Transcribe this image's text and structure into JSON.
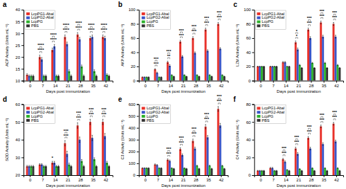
{
  "chart_data": [
    {
      "type": "bar",
      "title": "a",
      "xlabel": "Days post immunization",
      "ylabel": "ACP Activity (Units mL⁻¹)",
      "categories": [
        "0",
        "7",
        "14",
        "21",
        "28",
        "35",
        "42"
      ],
      "series": [
        {
          "name": "LcpPG1-Abal",
          "color": "#e8312a",
          "values": [
            12.5,
            20.0,
            23.0,
            28.5,
            29.5,
            28.0,
            28.5
          ],
          "errors": [
            0.4,
            0.8,
            0.8,
            0.8,
            0.8,
            0.8,
            0.8
          ]
        },
        {
          "name": "LcpPG2-Abal",
          "color": "#3A55C8",
          "values": [
            12.0,
            19.0,
            24.5,
            25.5,
            27.5,
            28.5,
            28.0
          ],
          "errors": [
            0.4,
            0.8,
            0.8,
            0.8,
            0.8,
            0.8,
            0.8
          ]
        },
        {
          "name": "LcpPG",
          "color": "#2db12d",
          "values": [
            12.0,
            12.0,
            12.0,
            14.0,
            16.0,
            14.0,
            12.5
          ],
          "errors": [
            0.4,
            0.4,
            0.4,
            0.6,
            0.6,
            0.6,
            0.4
          ]
        },
        {
          "name": "PBS",
          "color": "#333333",
          "values": [
            12.0,
            12.0,
            12.0,
            12.0,
            12.0,
            12.0,
            12.0
          ],
          "errors": [
            0.4,
            0.4,
            0.4,
            0.4,
            0.4,
            0.4,
            0.4
          ]
        }
      ],
      "ylim": [
        10,
        40
      ],
      "yticks": [
        10,
        15,
        20,
        25,
        30,
        35,
        40
      ],
      "grid": false,
      "legend": "upper left",
      "annotations": [
        {
          "category": "7",
          "labels": [
            "****",
            "****"
          ]
        },
        {
          "category": "14",
          "labels": [
            "****",
            "****"
          ]
        },
        {
          "category": "21",
          "labels": [
            "****",
            "****"
          ]
        },
        {
          "category": "28",
          "labels": [
            "****",
            "****"
          ]
        },
        {
          "category": "35",
          "labels": [
            "****",
            "****"
          ]
        },
        {
          "category": "42",
          "labels": [
            "****",
            "****"
          ]
        }
      ]
    },
    {
      "type": "bar",
      "title": "b",
      "xlabel": "Days post immunization",
      "ylabel": "AKP Activity (Units mL⁻¹)",
      "categories": [
        "0",
        "7",
        "14",
        "21",
        "28",
        "35",
        "42"
      ],
      "series": [
        {
          "name": "LcpPG1-Abal",
          "color": "#e8312a",
          "values": [
            5.0,
            16.0,
            26.0,
            55.0,
            60.0,
            72.0,
            80.0
          ],
          "errors": [
            0.4,
            1.0,
            1.5,
            2.0,
            2.0,
            2.0,
            2.0
          ]
        },
        {
          "name": "LcpPG2-Abal",
          "color": "#3A55C8",
          "values": [
            5.0,
            11.0,
            21.0,
            34.0,
            39.0,
            42.0,
            45.0
          ],
          "errors": [
            0.4,
            1.0,
            1.5,
            1.5,
            1.5,
            1.5,
            1.5
          ]
        },
        {
          "name": "LcpPG",
          "color": "#2db12d",
          "values": [
            5.0,
            5.0,
            8.0,
            8.0,
            8.0,
            8.0,
            8.0
          ],
          "errors": [
            0.4,
            0.4,
            0.4,
            0.4,
            0.4,
            0.4,
            0.4
          ]
        },
        {
          "name": "PBS",
          "color": "#333333",
          "values": [
            5.0,
            5.0,
            6.0,
            6.0,
            6.0,
            6.0,
            6.0
          ],
          "errors": [
            0.4,
            0.4,
            0.4,
            0.4,
            0.4,
            0.4,
            0.4
          ]
        }
      ],
      "ylim": [
        0,
        100
      ],
      "yticks": [
        0,
        20,
        40,
        60,
        80,
        100
      ],
      "grid": false,
      "legend": "upper left",
      "annotations": [
        {
          "category": "7",
          "labels": [
            "***",
            "***"
          ]
        },
        {
          "category": "14",
          "labels": [
            "**",
            "***"
          ]
        },
        {
          "category": "21",
          "labels": [
            "***",
            "***"
          ]
        },
        {
          "category": "28",
          "labels": [
            "***",
            "***"
          ]
        },
        {
          "category": "35",
          "labels": [
            "***",
            "***"
          ]
        },
        {
          "category": "42",
          "labels": [
            "***",
            "***"
          ]
        }
      ]
    },
    {
      "type": "bar",
      "title": "c",
      "xlabel": "Days post immunization",
      "ylabel": "LZM Activity (Units mL⁻¹)",
      "categories": [
        "0",
        "7",
        "14",
        "21",
        "28",
        "35",
        "42"
      ],
      "series": [
        {
          "name": "LcpPG1-Abal",
          "color": "#e8312a",
          "values": [
            20.0,
            20.0,
            26.0,
            54.0,
            72.0,
            82.0,
            80.0
          ],
          "errors": [
            0.5,
            0.5,
            1.0,
            2.0,
            2.0,
            2.0,
            2.0
          ]
        },
        {
          "name": "LcpPG2-Abal",
          "color": "#3A55C8",
          "values": [
            20.0,
            20.0,
            26.0,
            44.0,
            60.0,
            62.0,
            62.0
          ],
          "errors": [
            0.5,
            0.5,
            1.0,
            2.0,
            2.0,
            2.0,
            2.0
          ]
        },
        {
          "name": "LcpPG",
          "color": "#2db12d",
          "values": [
            20.0,
            20.0,
            20.0,
            22.0,
            25.0,
            25.0,
            22.0
          ],
          "errors": [
            0.5,
            0.5,
            0.5,
            0.8,
            0.8,
            0.8,
            0.8
          ]
        },
        {
          "name": "PBS",
          "color": "#333333",
          "values": [
            20.0,
            20.0,
            20.0,
            18.0,
            18.0,
            18.0,
            18.0
          ],
          "errors": [
            0.5,
            0.5,
            0.5,
            0.5,
            0.5,
            0.5,
            0.5
          ]
        }
      ],
      "ylim": [
        0,
        100
      ],
      "yticks": [
        0,
        20,
        40,
        60,
        80,
        100
      ],
      "grid": false,
      "legend": "upper left",
      "annotations": [
        {
          "category": "21",
          "labels": [
            "*",
            "*"
          ]
        },
        {
          "category": "28",
          "labels": [
            "***",
            "***"
          ]
        },
        {
          "category": "35",
          "labels": [
            "***",
            "***"
          ]
        },
        {
          "category": "42",
          "labels": [
            "***",
            "***"
          ]
        }
      ]
    },
    {
      "type": "bar",
      "title": "d",
      "xlabel": "Days post immunization",
      "ylabel": "SOD Activity (Units mL⁻¹)",
      "categories": [
        "0",
        "7",
        "14",
        "21",
        "28",
        "35",
        "42"
      ],
      "series": [
        {
          "name": "LcpPG1-Abal",
          "color": "#e8312a",
          "values": [
            25.0,
            26.0,
            27.0,
            38.0,
            48.0,
            50.0,
            50.0
          ],
          "errors": [
            0.5,
            0.5,
            0.8,
            1.5,
            1.5,
            1.5,
            1.5
          ]
        },
        {
          "name": "LcpPG2-Abal",
          "color": "#3A55C8",
          "values": [
            25.0,
            26.0,
            27.0,
            32.0,
            40.0,
            41.0,
            42.0
          ],
          "errors": [
            0.5,
            0.5,
            0.8,
            1.5,
            1.5,
            1.5,
            1.5
          ]
        },
        {
          "name": "LcpPG",
          "color": "#2db12d",
          "values": [
            25.0,
            25.0,
            25.0,
            26.0,
            28.0,
            29.0,
            27.0
          ],
          "errors": [
            0.5,
            0.5,
            0.5,
            0.8,
            0.8,
            0.8,
            0.8
          ]
        },
        {
          "name": "PBS",
          "color": "#333333",
          "values": [
            25.0,
            25.0,
            25.0,
            25.0,
            25.0,
            25.0,
            25.0
          ],
          "errors": [
            0.5,
            0.5,
            0.5,
            0.5,
            0.5,
            0.5,
            0.5
          ]
        }
      ],
      "ylim": [
        20,
        60
      ],
      "yticks": [
        20,
        30,
        40,
        50,
        60
      ],
      "grid": false,
      "legend": "upper left",
      "annotations": [
        {
          "category": "14",
          "labels": [
            "*"
          ]
        },
        {
          "category": "21",
          "labels": [
            "***",
            "***"
          ]
        },
        {
          "category": "28",
          "labels": [
            "***",
            "***"
          ]
        },
        {
          "category": "35",
          "labels": [
            "***",
            "***"
          ]
        },
        {
          "category": "42",
          "labels": [
            "***",
            "***"
          ]
        }
      ]
    },
    {
      "type": "bar",
      "title": "e",
      "xlabel": "Days post immunization",
      "ylabel": "C3 Activity (Units mL⁻¹)",
      "categories": [
        "0",
        "7",
        "14",
        "21",
        "28",
        "35",
        "42"
      ],
      "series": [
        {
          "name": "LcpPG1-Abal",
          "color": "#e8312a",
          "values": [
            60.0,
            90.0,
            130.0,
            220.0,
            290.0,
            410.0,
            560.0
          ],
          "errors": [
            3.0,
            5.0,
            8.0,
            12.0,
            15.0,
            18.0,
            20.0
          ]
        },
        {
          "name": "LcpPG2-Abal",
          "color": "#3A55C8",
          "values": [
            60.0,
            85.0,
            120.0,
            170.0,
            225.0,
            320.0,
            420.0
          ],
          "errors": [
            3.0,
            5.0,
            8.0,
            10.0,
            12.0,
            15.0,
            18.0
          ]
        },
        {
          "name": "LcpPG",
          "color": "#2db12d",
          "values": [
            60.0,
            60.0,
            60.0,
            60.0,
            80.0,
            80.0,
            80.0
          ],
          "errors": [
            3.0,
            3.0,
            3.0,
            3.0,
            4.0,
            4.0,
            4.0
          ]
        },
        {
          "name": "PBS",
          "color": "#333333",
          "values": [
            60.0,
            60.0,
            55.0,
            55.0,
            55.0,
            55.0,
            55.0
          ],
          "errors": [
            3.0,
            3.0,
            3.0,
            3.0,
            3.0,
            3.0,
            3.0
          ]
        }
      ],
      "ylim": [
        0,
        600
      ],
      "yticks": [
        0,
        100,
        200,
        300,
        400,
        500,
        600
      ],
      "grid": false,
      "legend": "upper left",
      "annotations": [
        {
          "category": "14",
          "labels": [
            "***",
            "***"
          ]
        },
        {
          "category": "21",
          "labels": [
            "***",
            "***"
          ]
        },
        {
          "category": "28",
          "labels": [
            "***",
            "***"
          ]
        },
        {
          "category": "35",
          "labels": [
            "***",
            "***"
          ]
        },
        {
          "category": "42",
          "labels": [
            "***",
            "***"
          ]
        }
      ]
    },
    {
      "type": "bar",
      "title": "f",
      "xlabel": "Days post immunization",
      "ylabel": "C4 Activity (Units mL⁻¹)",
      "categories": [
        "0",
        "7",
        "14",
        "21",
        "28",
        "35",
        "42"
      ],
      "series": [
        {
          "name": "LcpPG1-Abal",
          "color": "#e8312a",
          "values": [
            5.0,
            8.0,
            18.0,
            30.0,
            42.0,
            55.0,
            58.0
          ],
          "errors": [
            0.4,
            0.8,
            1.0,
            1.5,
            1.5,
            1.5,
            1.5
          ]
        },
        {
          "name": "LcpPG2-Abal",
          "color": "#3A55C8",
          "values": [
            5.0,
            8.0,
            15.0,
            24.0,
            30.0,
            35.0,
            38.0
          ],
          "errors": [
            0.4,
            0.8,
            1.0,
            1.5,
            1.5,
            1.5,
            1.5
          ]
        },
        {
          "name": "LcpPG",
          "color": "#2db12d",
          "values": [
            5.0,
            5.0,
            6.0,
            7.0,
            8.0,
            8.0,
            8.0
          ],
          "errors": [
            0.4,
            0.4,
            0.4,
            0.4,
            0.4,
            0.4,
            0.4
          ]
        },
        {
          "name": "PBS",
          "color": "#333333",
          "values": [
            5.0,
            5.0,
            5.0,
            5.0,
            5.0,
            5.0,
            5.0
          ],
          "errors": [
            0.4,
            0.4,
            0.4,
            0.4,
            0.4,
            0.4,
            0.4
          ]
        }
      ],
      "ylim": [
        0,
        80
      ],
      "yticks": [
        0,
        20,
        40,
        60,
        80
      ],
      "grid": false,
      "legend": "upper left",
      "annotations": [
        {
          "category": "14",
          "labels": [
            "***",
            "***"
          ]
        },
        {
          "category": "21",
          "labels": [
            "***",
            "***"
          ]
        },
        {
          "category": "28",
          "labels": [
            "***",
            "***"
          ]
        },
        {
          "category": "35",
          "labels": [
            "***",
            "***"
          ]
        },
        {
          "category": "42",
          "labels": [
            "***",
            "***"
          ]
        }
      ]
    }
  ]
}
